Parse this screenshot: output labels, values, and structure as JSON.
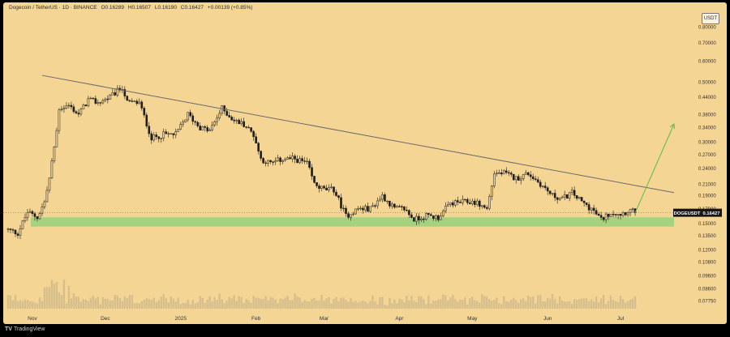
{
  "header": {
    "symbol": "Dogecoin / TetherUS · 1D · BINANCE",
    "open": "O0.16289",
    "high": "H0.16507",
    "low": "L0.16190",
    "close": "C0.16427",
    "change": "+0.00139 (+0.85%)"
  },
  "unit_badge": "USDT",
  "footer": {
    "logo": "TV",
    "brand": "TradingView"
  },
  "colors": {
    "background": "#f5d594",
    "candle": "#1e1e1e",
    "trendline": "#6b6b6b",
    "support_zone": "#a5d27f",
    "projection_arrow": "#58c043",
    "volume": "#c9b48a"
  },
  "chart_data": {
    "type": "candlestick",
    "title": "Dogecoin / TetherUS · 1D · BINANCE",
    "y_scale": "log",
    "ylim": [
      0.0725,
      0.86
    ],
    "y_ticks": [
      "0.80000",
      "0.70000",
      "0.60000",
      "0.50000",
      "0.44000",
      "0.38000",
      "0.34000",
      "0.30000",
      "0.27000",
      "0.24000",
      "0.21000",
      "0.19000",
      "0.17000",
      "0.15000",
      "0.13500",
      "0.12000",
      "0.10800",
      "0.09600",
      "0.08600",
      "0.07750"
    ],
    "x_ticks": [
      {
        "label": "Nov",
        "date": "2024-11-01"
      },
      {
        "label": "Dec",
        "date": "2024-12-01"
      },
      {
        "label": "2025",
        "date": "2025-01-01"
      },
      {
        "label": "Feb",
        "date": "2025-02-01"
      },
      {
        "label": "Mar",
        "date": "2025-03-01"
      },
      {
        "label": "Apr",
        "date": "2025-04-01"
      },
      {
        "label": "May",
        "date": "2025-05-01"
      },
      {
        "label": "Jun",
        "date": "2025-06-01"
      },
      {
        "label": "Jul",
        "date": "2025-07-01"
      }
    ],
    "price_label": "DOGEUSDT",
    "last_price": "0.16427",
    "close_series": [
      [
        "2024-10-22",
        0.142
      ],
      [
        "2024-10-26",
        0.138
      ],
      [
        "2024-10-30",
        0.165
      ],
      [
        "2024-11-03",
        0.158
      ],
      [
        "2024-11-06",
        0.18
      ],
      [
        "2024-11-08",
        0.22
      ],
      [
        "2024-11-11",
        0.33
      ],
      [
        "2024-11-12",
        0.4
      ],
      [
        "2024-11-16",
        0.41
      ],
      [
        "2024-11-20",
        0.38
      ],
      [
        "2024-11-24",
        0.43
      ],
      [
        "2024-11-28",
        0.42
      ],
      [
        "2024-12-03",
        0.44
      ],
      [
        "2024-12-08",
        0.48
      ],
      [
        "2024-12-10",
        0.42
      ],
      [
        "2024-12-15",
        0.42
      ],
      [
        "2024-12-19",
        0.33
      ],
      [
        "2024-12-20",
        0.31
      ],
      [
        "2024-12-25",
        0.32
      ],
      [
        "2024-12-30",
        0.32
      ],
      [
        "2025-01-04",
        0.38
      ],
      [
        "2025-01-09",
        0.34
      ],
      [
        "2025-01-13",
        0.33
      ],
      [
        "2025-01-18",
        0.4
      ],
      [
        "2025-01-23",
        0.36
      ],
      [
        "2025-01-27",
        0.35
      ],
      [
        "2025-01-31",
        0.32
      ],
      [
        "2025-02-03",
        0.26
      ],
      [
        "2025-02-07",
        0.25
      ],
      [
        "2025-02-12",
        0.26
      ],
      [
        "2025-02-17",
        0.26
      ],
      [
        "2025-02-22",
        0.25
      ],
      [
        "2025-02-25",
        0.21
      ],
      [
        "2025-03-01",
        0.2
      ],
      [
        "2025-03-05",
        0.2
      ],
      [
        "2025-03-10",
        0.16
      ],
      [
        "2025-03-15",
        0.17
      ],
      [
        "2025-03-20",
        0.17
      ],
      [
        "2025-03-25",
        0.19
      ],
      [
        "2025-03-30",
        0.17
      ],
      [
        "2025-04-03",
        0.17
      ],
      [
        "2025-04-07",
        0.155
      ],
      [
        "2025-04-12",
        0.16
      ],
      [
        "2025-04-17",
        0.158
      ],
      [
        "2025-04-22",
        0.178
      ],
      [
        "2025-04-27",
        0.18
      ],
      [
        "2025-05-02",
        0.18
      ],
      [
        "2025-05-07",
        0.17
      ],
      [
        "2025-05-10",
        0.23
      ],
      [
        "2025-05-14",
        0.23
      ],
      [
        "2025-05-19",
        0.22
      ],
      [
        "2025-05-24",
        0.23
      ],
      [
        "2025-05-29",
        0.21
      ],
      [
        "2025-06-03",
        0.19
      ],
      [
        "2025-06-07",
        0.185
      ],
      [
        "2025-06-11",
        0.195
      ],
      [
        "2025-06-15",
        0.18
      ],
      [
        "2025-06-19",
        0.17
      ],
      [
        "2025-06-23",
        0.155
      ],
      [
        "2025-06-27",
        0.165
      ],
      [
        "2025-07-01",
        0.163
      ],
      [
        "2025-07-05",
        0.168
      ],
      [
        "2025-07-07",
        0.16427
      ]
    ],
    "annotations": [
      {
        "type": "trendline",
        "from": [
          "2024-11-05",
          0.53
        ],
        "to": [
          "2025-07-23",
          0.195
        ]
      },
      {
        "type": "zone",
        "label": "support",
        "y_range": [
          0.146,
          0.158
        ],
        "x_range": [
          "2024-10-20",
          "2025-07-23"
        ]
      },
      {
        "type": "arrow",
        "from": [
          "2025-07-07",
          0.16427
        ],
        "to": [
          "2025-07-23",
          0.35
        ]
      },
      {
        "type": "hline",
        "y": 0.16427
      }
    ]
  }
}
